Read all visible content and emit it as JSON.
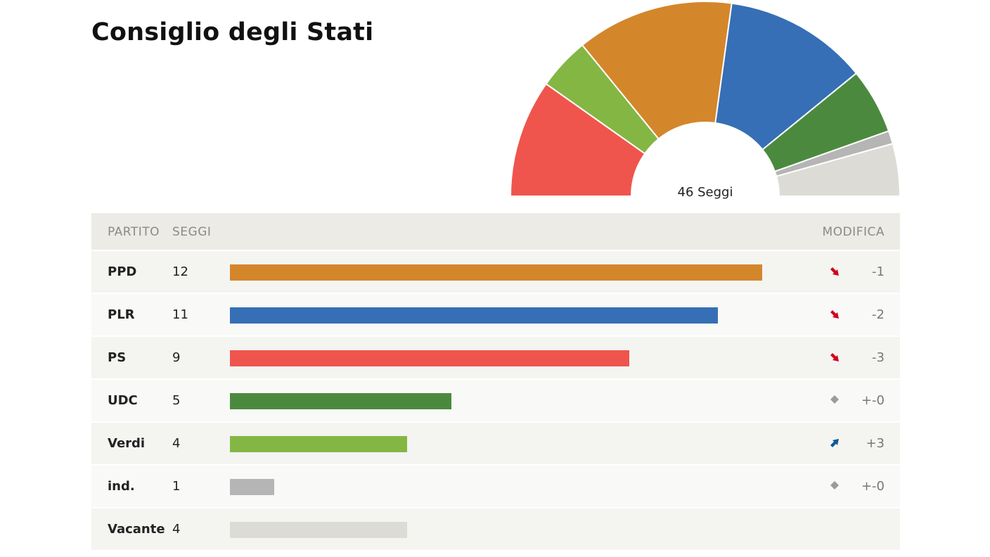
{
  "title": "Consiglio degli Stati",
  "chart_data": {
    "type": "bar",
    "total": 46,
    "total_label": "46 Seggi",
    "max_value": 12,
    "columns": {
      "party": "PARTITO",
      "seats": "SEGGI",
      "change": "MODIFICA"
    },
    "rows": [
      {
        "party": "PPD",
        "seats": 12,
        "change": "-1",
        "trend": "down",
        "color": "#d4862b"
      },
      {
        "party": "PLR",
        "seats": 11,
        "change": "-2",
        "trend": "down",
        "color": "#366fb5"
      },
      {
        "party": "PS",
        "seats": 9,
        "change": "-3",
        "trend": "down",
        "color": "#ef554d"
      },
      {
        "party": "UDC",
        "seats": 5,
        "change": "+-0",
        "trend": "same",
        "color": "#4b8a3e"
      },
      {
        "party": "Verdi",
        "seats": 4,
        "change": "+3",
        "trend": "up",
        "color": "#84b644"
      },
      {
        "party": "ind.",
        "seats": 1,
        "change": "+-0",
        "trend": "same",
        "color": "#b5b5b5"
      },
      {
        "party": "Vacante",
        "seats": 4,
        "change": "",
        "trend": "none",
        "color": "#dcdbd5"
      }
    ],
    "hemicycle_order": [
      "PS",
      "Verdi",
      "PPD",
      "PLR",
      "UDC",
      "ind.",
      "Vacante"
    ],
    "trend_colors": {
      "down": "#d0021b",
      "up": "#0a5a96",
      "same": "#9b9b9b"
    }
  }
}
